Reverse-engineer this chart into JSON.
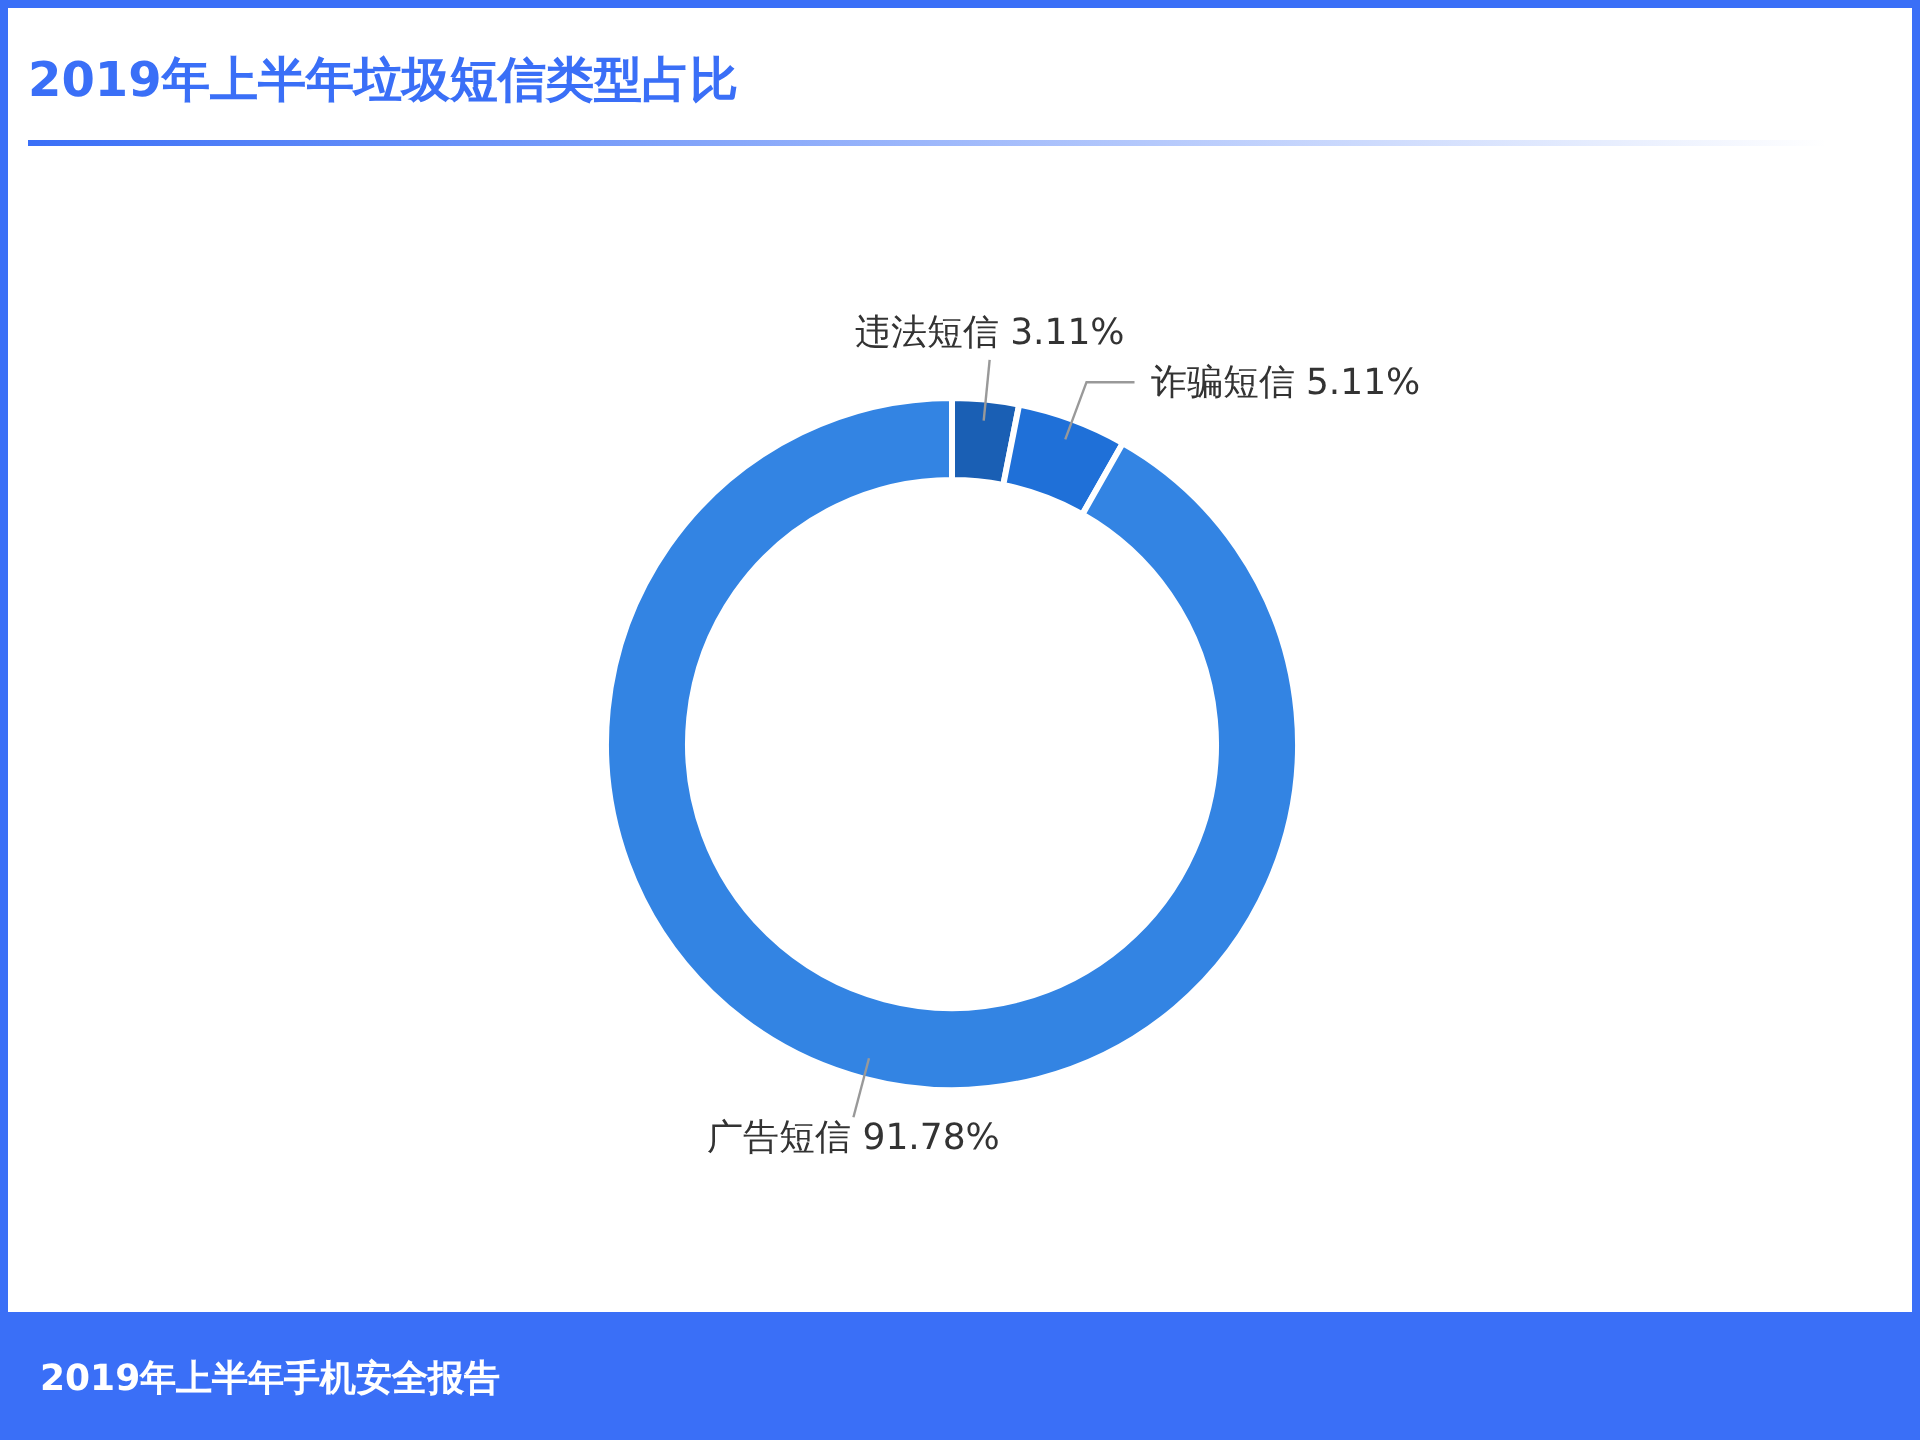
{
  "chart_data": {
    "type": "donut",
    "title": "2019年上半年垃圾短信类型占比",
    "categories": [
      "违法短信",
      "诈骗短信",
      "广告短信"
    ],
    "values": [
      3.11,
      5.11,
      91.78
    ],
    "value_labels": [
      "3.11%",
      "5.11%",
      "91.78%"
    ],
    "colors": [
      "#1a5fb4",
      "#1f70d8",
      "#3384e3"
    ],
    "annotations": [
      "2019年上半年手机安全报告"
    ]
  }
}
